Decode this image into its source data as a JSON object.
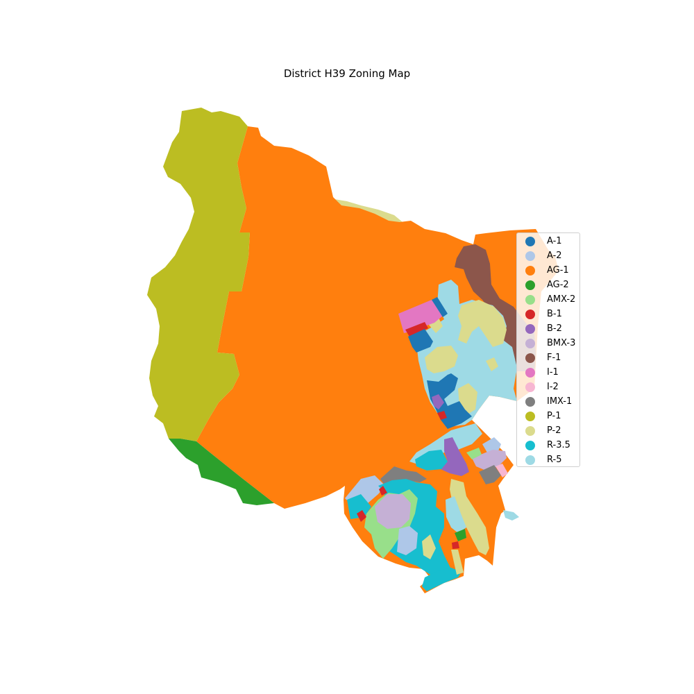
{
  "title": "District H39 Zoning Map",
  "legend": {
    "items": [
      {
        "label": "A-1",
        "color": "#1f77b4"
      },
      {
        "label": "A-2",
        "color": "#aec7e8"
      },
      {
        "label": "AG-1",
        "color": "#ff7f0e"
      },
      {
        "label": "AG-2",
        "color": "#2ca02c"
      },
      {
        "label": "AMX-2",
        "color": "#98df8a"
      },
      {
        "label": "B-1",
        "color": "#d62728"
      },
      {
        "label": "B-2",
        "color": "#9467bd"
      },
      {
        "label": "BMX-3",
        "color": "#c5b0d5"
      },
      {
        "label": "F-1",
        "color": "#8c564b"
      },
      {
        "label": "I-1",
        "color": "#e377c2"
      },
      {
        "label": "I-2",
        "color": "#f7b6d2"
      },
      {
        "label": "IMX-1",
        "color": "#7f7f7f"
      },
      {
        "label": "P-1",
        "color": "#bcbd22"
      },
      {
        "label": "P-2",
        "color": "#dbdb8d"
      },
      {
        "label": "R-3.5",
        "color": "#17becf"
      },
      {
        "label": "R-5",
        "color": "#9edae5"
      }
    ]
  }
}
